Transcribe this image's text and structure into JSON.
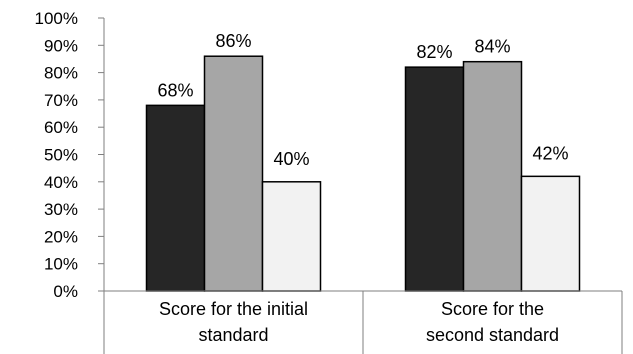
{
  "chart_data": {
    "type": "bar",
    "title": "",
    "xlabel": "",
    "ylabel": "",
    "ylim": [
      0,
      100
    ],
    "y_tick_step": 10,
    "y_tick_suffix": "%",
    "grid": false,
    "legend": "none",
    "categories": [
      [
        "Score for the initial",
        "standard"
      ],
      [
        "Score for the",
        "second standard"
      ]
    ],
    "series": [
      {
        "values": [
          68,
          82
        ],
        "color": "#262626"
      },
      {
        "values": [
          86,
          84
        ],
        "color": "#a6a6a6"
      },
      {
        "values": [
          40,
          42
        ],
        "color": "#f2f2f2"
      }
    ],
    "data_labels": [
      [
        "68%",
        "82%"
      ],
      [
        "86%",
        "84%"
      ],
      [
        "40%",
        "42%"
      ]
    ]
  }
}
